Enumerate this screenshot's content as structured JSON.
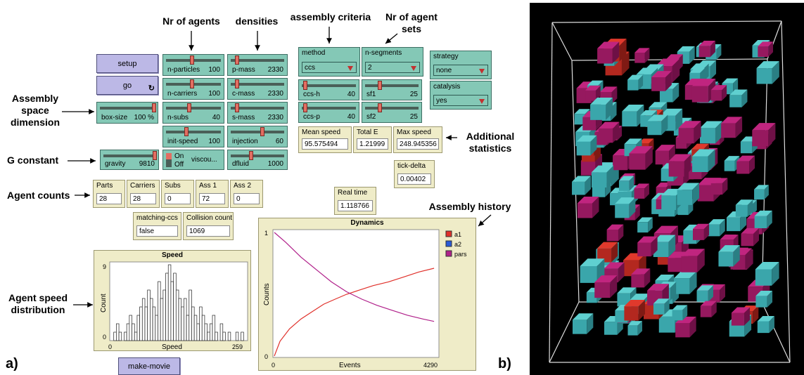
{
  "annotations": {
    "nr_agents": "Nr of agents",
    "densities": "densities",
    "assembly_criteria": "assembly criteria",
    "nr_agent_sets": "Nr of agent sets",
    "assembly_space": "Assembly space dimension",
    "additional_statistics": "Additional statistics",
    "g_constant": "G constant",
    "agent_counts": "Agent counts",
    "assembly_history": "Assembly history",
    "agent_speed_distribution": "Agent speed distribution",
    "label_a": "a)",
    "label_b": "b)"
  },
  "buttons": {
    "setup": "setup",
    "go": "go",
    "make_movie": "make-movie"
  },
  "sliders": [
    {
      "key": "n-particles",
      "label": "n-particles",
      "value": "100",
      "pos": 0.5
    },
    {
      "key": "n-carriers",
      "label": "n-carriers",
      "value": "100",
      "pos": 0.5
    },
    {
      "key": "n-subs",
      "label": "n-subs",
      "value": "40",
      "pos": 0.45
    },
    {
      "key": "init-speed",
      "label": "init-speed",
      "value": "100",
      "pos": 0.4
    },
    {
      "key": "p-mass",
      "label": "p-mass",
      "value": "2330",
      "pos": 0.1
    },
    {
      "key": "c-mass",
      "label": "c-mass",
      "value": "2330",
      "pos": 0.1
    },
    {
      "key": "s-mass",
      "label": "s-mass",
      "value": "2330",
      "pos": 0.1
    },
    {
      "key": "injection",
      "label": "injection",
      "value": "60",
      "pos": 0.6
    },
    {
      "key": "box-size",
      "label": "box-size",
      "value": "100 %",
      "pos": 0.98
    },
    {
      "key": "gravity",
      "label": "gravity",
      "value": "9810",
      "pos": 0.98
    },
    {
      "key": "dfluid",
      "label": "dfluid",
      "value": "1000",
      "pos": 0.4
    },
    {
      "key": "ccs-h",
      "label": "ccs-h",
      "value": "40",
      "pos": 0.05
    },
    {
      "key": "ccs-p",
      "label": "ccs-p",
      "value": "40",
      "pos": 0.05
    },
    {
      "key": "sf1",
      "label": "sf1",
      "value": "25",
      "pos": 0.3
    },
    {
      "key": "sf2",
      "label": "sf2",
      "value": "25",
      "pos": 0.3
    }
  ],
  "switch": {
    "on": "On",
    "off": "Off",
    "label": "viscou..."
  },
  "choosers": {
    "method": {
      "label": "method",
      "value": "ccs"
    },
    "n_segments": {
      "label": "n-segments",
      "value": "2"
    },
    "strategy": {
      "label": "strategy",
      "value": "none"
    },
    "catalysis": {
      "label": "catalysis",
      "value": "yes"
    }
  },
  "monitors": {
    "mean_speed": {
      "label": "Mean speed",
      "value": "95.575494"
    },
    "total_e": {
      "label": "Total E",
      "value": "1.21999"
    },
    "max_speed": {
      "label": "Max speed",
      "value": "248.945356"
    },
    "tick_delta": {
      "label": "tick-delta",
      "value": "0.00402"
    },
    "parts": {
      "label": "Parts",
      "value": "28"
    },
    "carriers": {
      "label": "Carriers",
      "value": "28"
    },
    "subs": {
      "label": "Subs",
      "value": "0"
    },
    "ass1": {
      "label": "Ass 1",
      "value": "72"
    },
    "ass2": {
      "label": "Ass 2",
      "value": "0"
    },
    "matching_ccs": {
      "label": "matching-ccs",
      "value": "false"
    },
    "collision_count": {
      "label": "Collision count",
      "value": "1069"
    },
    "real_time": {
      "label": "Real time",
      "value": "1.118766"
    }
  },
  "speed_plot": {
    "title": "Speed",
    "xlabel": "Speed",
    "ylabel": "Count",
    "xmin": "0",
    "xmax": "259",
    "ymin": "0",
    "ymax": "9"
  },
  "dynamics_plot": {
    "title": "Dynamics",
    "xlabel": "Events",
    "ylabel": "Counts",
    "xmin": "0",
    "xmax": "4290",
    "ymin": "0",
    "ymax": "1",
    "legend": [
      {
        "name": "a1",
        "color": "#e0302a"
      },
      {
        "name": "a2",
        "color": "#2a5ad8"
      },
      {
        "name": "pars",
        "color": "#b0208a"
      }
    ]
  },
  "chart_data": [
    {
      "type": "bar",
      "title": "Speed",
      "xlabel": "Speed",
      "ylabel": "Count",
      "xlim": [
        0,
        259
      ],
      "ylim": [
        0,
        9
      ],
      "values": [
        0,
        1,
        2,
        1,
        0,
        1,
        2,
        3,
        2,
        1,
        3,
        4,
        5,
        4,
        6,
        5,
        4,
        3,
        7,
        5,
        6,
        8,
        9,
        7,
        8,
        6,
        5,
        4,
        5,
        3,
        6,
        4,
        3,
        2,
        4,
        3,
        2,
        1,
        2,
        3,
        1,
        0,
        2,
        1,
        0,
        1,
        0,
        0,
        1,
        0,
        1,
        0
      ]
    },
    {
      "type": "line",
      "title": "Dynamics",
      "xlabel": "Events",
      "ylabel": "Counts",
      "xlim": [
        0,
        4290
      ],
      "ylim": [
        0,
        1
      ],
      "series": [
        {
          "name": "a1",
          "x": [
            0,
            150,
            400,
            700,
            1000,
            1300,
            1600,
            1900,
            2200,
            2600,
            3000,
            3400,
            3800,
            4200
          ],
          "y": [
            0,
            0.12,
            0.22,
            0.3,
            0.36,
            0.42,
            0.46,
            0.5,
            0.53,
            0.57,
            0.6,
            0.64,
            0.68,
            0.71
          ]
        },
        {
          "name": "a2",
          "x": [],
          "y": []
        },
        {
          "name": "pars",
          "x": [
            0,
            300,
            700,
            1100,
            1500,
            1900,
            2300,
            2700,
            3100,
            3500,
            3900,
            4200
          ],
          "y": [
            1,
            0.92,
            0.8,
            0.7,
            0.6,
            0.52,
            0.46,
            0.41,
            0.37,
            0.33,
            0.3,
            0.28
          ]
        }
      ]
    }
  ]
}
